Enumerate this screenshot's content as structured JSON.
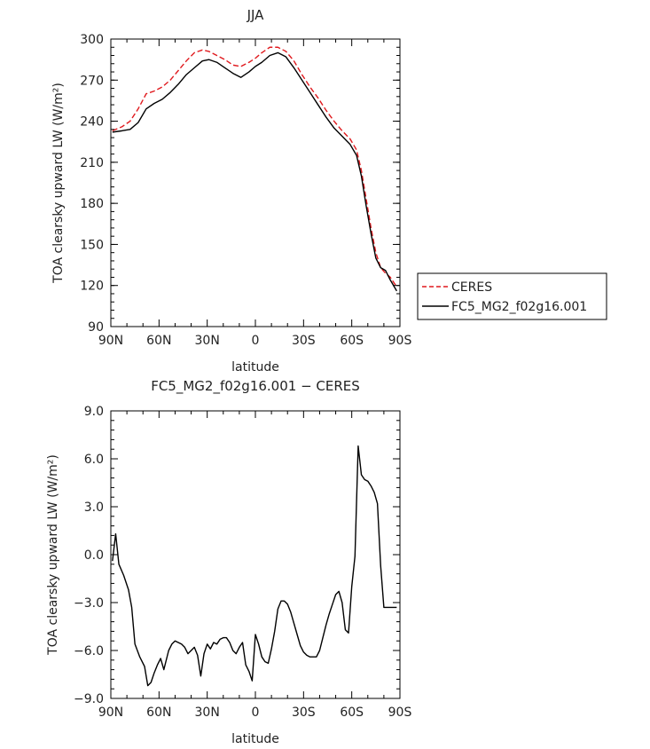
{
  "chart_data": [
    {
      "type": "line",
      "title": "JJA",
      "xlabel": "latitude",
      "ylabel": "TOA clearsky upward LW (W/m²)",
      "xlim": [
        90,
        -90
      ],
      "ylim": [
        90,
        300
      ],
      "xticks": [
        90,
        60,
        30,
        0,
        -30,
        -60,
        -90
      ],
      "xtick_labels": [
        "90N",
        "60N",
        "30N",
        "0",
        "30S",
        "60S",
        "90S"
      ],
      "yticks": [
        90,
        120,
        150,
        180,
        210,
        240,
        270,
        300
      ],
      "ytick_labels": [
        "90",
        "120",
        "150",
        "180",
        "210",
        "240",
        "270",
        "300"
      ],
      "legend_position": "right",
      "series": [
        {
          "name": "CERES",
          "color": "#e0191d",
          "dash": "dashed",
          "x": [
            89,
            83,
            78,
            73,
            68,
            63,
            58,
            53,
            48,
            43,
            38,
            33,
            29,
            24,
            19,
            14,
            9,
            4,
            0,
            -4,
            -9,
            -14,
            -19,
            -24,
            -29,
            -34,
            -39,
            -44,
            -49,
            -54,
            -59,
            -63,
            -66,
            -69,
            -72,
            -75,
            -78,
            -81,
            -84,
            -88
          ],
          "values": [
            233,
            236,
            240,
            249,
            260,
            262,
            265,
            270,
            277,
            284,
            290,
            292,
            291,
            288,
            285,
            281,
            280,
            283,
            286,
            290,
            294,
            294,
            291,
            284,
            274,
            265,
            257,
            248,
            240,
            233,
            227,
            219,
            204,
            183,
            162,
            144,
            133,
            129,
            126,
            119
          ]
        },
        {
          "name": "FC5_MG2_f02g16.001",
          "color": "#000000",
          "dash": "solid",
          "x": [
            89,
            83,
            78,
            73,
            68,
            63,
            58,
            53,
            48,
            43,
            38,
            33,
            29,
            24,
            19,
            14,
            9,
            4,
            0,
            -4,
            -9,
            -14,
            -19,
            -24,
            -29,
            -34,
            -39,
            -44,
            -49,
            -54,
            -59,
            -63,
            -66,
            -69,
            -72,
            -75,
            -78,
            -81,
            -84,
            -88
          ],
          "values": [
            232,
            233,
            234,
            239,
            249,
            253,
            256,
            261,
            267,
            274,
            279,
            284,
            285,
            283,
            279,
            275,
            272,
            276,
            280,
            283,
            288,
            290,
            287,
            279,
            270,
            261,
            252,
            243,
            235,
            229,
            223,
            215,
            200,
            178,
            158,
            140,
            133,
            131,
            124,
            116
          ]
        }
      ]
    },
    {
      "type": "line",
      "title": "FC5_MG2_f02g16.001 − CERES",
      "xlabel": "latitude",
      "ylabel": "TOA clearsky upward LW (W/m²)",
      "xlim": [
        90,
        -90
      ],
      "ylim": [
        -9,
        9
      ],
      "xticks": [
        90,
        60,
        30,
        0,
        -30,
        -60,
        -90
      ],
      "xtick_labels": [
        "90N",
        "60N",
        "30N",
        "0",
        "30S",
        "60S",
        "90S"
      ],
      "yticks": [
        -9,
        -6,
        -3,
        0,
        3,
        6,
        9
      ],
      "ytick_labels": [
        "−9.0",
        "−6.0",
        "−3.0",
        "0.0",
        "3.0",
        "6.0",
        "9.0"
      ],
      "series": [
        {
          "name": "",
          "color": "#000000",
          "dash": "solid",
          "x": [
            89,
            87,
            85,
            82,
            79,
            77,
            75,
            72,
            69,
            67,
            65,
            63,
            61,
            59,
            57,
            54,
            52,
            50,
            48,
            46,
            44,
            42,
            40,
            38,
            36,
            34,
            32,
            30,
            28,
            26,
            24,
            22,
            20,
            18,
            16,
            14,
            12,
            10,
            8,
            6,
            4,
            2,
            0,
            -2,
            -4,
            -6,
            -8,
            -10,
            -12,
            -14,
            -16,
            -18,
            -20,
            -22,
            -24,
            -26,
            -28,
            -30,
            -32,
            -34,
            -36,
            -38,
            -40,
            -42,
            -44,
            -46,
            -48,
            -50,
            -52,
            -54,
            -56,
            -58,
            -60,
            -62,
            -64,
            -66,
            -68,
            -70,
            -72,
            -74,
            -76,
            -78,
            -80,
            -82,
            -84,
            -86,
            -88
          ],
          "values": [
            -0.4,
            1.3,
            -0.6,
            -1.3,
            -2.2,
            -3.3,
            -5.6,
            -6.4,
            -7.0,
            -8.2,
            -8.0,
            -7.4,
            -6.9,
            -6.5,
            -7.2,
            -6.0,
            -5.6,
            -5.4,
            -5.5,
            -5.6,
            -5.8,
            -6.2,
            -6.0,
            -5.8,
            -6.3,
            -7.6,
            -6.2,
            -5.6,
            -5.9,
            -5.5,
            -5.6,
            -5.3,
            -5.2,
            -5.2,
            -5.5,
            -6.0,
            -6.2,
            -5.8,
            -5.5,
            -6.9,
            -7.3,
            -7.9,
            -5.0,
            -5.6,
            -6.4,
            -6.7,
            -6.8,
            -5.9,
            -4.8,
            -3.4,
            -2.9,
            -2.9,
            -3.1,
            -3.6,
            -4.3,
            -5.0,
            -5.7,
            -6.1,
            -6.3,
            -6.4,
            -6.4,
            -6.4,
            -6.0,
            -5.2,
            -4.4,
            -3.7,
            -3.1,
            -2.5,
            -2.3,
            -3.0,
            -4.7,
            -4.9,
            -2.0,
            -0.1,
            6.8,
            5.0,
            4.7,
            4.6,
            4.3,
            3.9,
            3.2,
            -0.7,
            -3.3,
            -3.3,
            -3.3,
            -3.3,
            -3.3
          ]
        }
      ]
    }
  ]
}
